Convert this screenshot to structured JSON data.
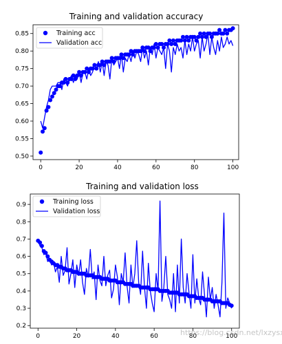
{
  "watermark": "https://blog.csdn.net/lxzysx",
  "colors": {
    "series": "#0000ff",
    "axes": "#000000",
    "background": "#ffffff"
  },
  "chart_data": [
    {
      "type": "scatter+line",
      "title": "Training and validation accuracy",
      "xlabel": "",
      "ylabel": "",
      "xlim": [
        -4,
        103
      ],
      "ylim": [
        0.49,
        0.875
      ],
      "xticks": [
        0,
        20,
        40,
        60,
        80,
        100
      ],
      "yticks": [
        0.5,
        0.55,
        0.6,
        0.65,
        0.7,
        0.75,
        0.8,
        0.85
      ],
      "ytick_labels": [
        "0.50",
        "0.55",
        "0.60",
        "0.65",
        "0.70",
        "0.75",
        "0.80",
        "0.85"
      ],
      "legend_position": "top-left",
      "series": [
        {
          "name": "Training acc",
          "style": "dots",
          "x": [
            0,
            1,
            2,
            3,
            4,
            5,
            6,
            7,
            8,
            9,
            10,
            11,
            12,
            13,
            14,
            15,
            16,
            17,
            18,
            19,
            20,
            21,
            22,
            23,
            24,
            25,
            26,
            27,
            28,
            29,
            30,
            31,
            32,
            33,
            34,
            35,
            36,
            37,
            38,
            39,
            40,
            41,
            42,
            43,
            44,
            45,
            46,
            47,
            48,
            49,
            50,
            51,
            52,
            53,
            54,
            55,
            56,
            57,
            58,
            59,
            60,
            61,
            62,
            63,
            64,
            65,
            66,
            67,
            68,
            69,
            70,
            71,
            72,
            73,
            74,
            75,
            76,
            77,
            78,
            79,
            80,
            81,
            82,
            83,
            84,
            85,
            86,
            87,
            88,
            89,
            90,
            91,
            92,
            93,
            94,
            95,
            96,
            97,
            98,
            99,
            100
          ],
          "values": [
            0.51,
            0.57,
            0.58,
            0.63,
            0.64,
            0.66,
            0.67,
            0.68,
            0.69,
            0.7,
            0.7,
            0.71,
            0.71,
            0.72,
            0.71,
            0.72,
            0.72,
            0.73,
            0.72,
            0.73,
            0.74,
            0.73,
            0.74,
            0.74,
            0.75,
            0.74,
            0.75,
            0.75,
            0.76,
            0.75,
            0.76,
            0.76,
            0.77,
            0.76,
            0.77,
            0.77,
            0.77,
            0.78,
            0.77,
            0.78,
            0.78,
            0.78,
            0.79,
            0.78,
            0.79,
            0.79,
            0.79,
            0.8,
            0.79,
            0.8,
            0.8,
            0.8,
            0.8,
            0.81,
            0.8,
            0.81,
            0.81,
            0.8,
            0.81,
            0.81,
            0.82,
            0.81,
            0.82,
            0.82,
            0.81,
            0.82,
            0.82,
            0.83,
            0.82,
            0.83,
            0.82,
            0.83,
            0.83,
            0.83,
            0.84,
            0.83,
            0.84,
            0.83,
            0.84,
            0.84,
            0.84,
            0.83,
            0.84,
            0.85,
            0.84,
            0.85,
            0.84,
            0.85,
            0.85,
            0.84,
            0.85,
            0.85,
            0.85,
            0.86,
            0.85,
            0.85,
            0.86,
            0.85,
            0.86,
            0.86,
            0.865
          ]
        },
        {
          "name": "Validation acc",
          "style": "line",
          "x": [
            0,
            1,
            2,
            3,
            4,
            5,
            6,
            7,
            8,
            9,
            10,
            11,
            12,
            13,
            14,
            15,
            16,
            17,
            18,
            19,
            20,
            21,
            22,
            23,
            24,
            25,
            26,
            27,
            28,
            29,
            30,
            31,
            32,
            33,
            34,
            35,
            36,
            37,
            38,
            39,
            40,
            41,
            42,
            43,
            44,
            45,
            46,
            47,
            48,
            49,
            50,
            51,
            52,
            53,
            54,
            55,
            56,
            57,
            58,
            59,
            60,
            61,
            62,
            63,
            64,
            65,
            66,
            67,
            68,
            69,
            70,
            71,
            72,
            73,
            74,
            75,
            76,
            77,
            78,
            79,
            80,
            81,
            82,
            83,
            84,
            85,
            86,
            87,
            88,
            89,
            90,
            91,
            92,
            93,
            94,
            95,
            96,
            97,
            98,
            99,
            100
          ],
          "values": [
            0.6,
            0.58,
            0.61,
            0.64,
            0.66,
            0.69,
            0.7,
            0.7,
            0.7,
            0.71,
            0.71,
            0.69,
            0.72,
            0.71,
            0.7,
            0.72,
            0.73,
            0.71,
            0.73,
            0.72,
            0.74,
            0.71,
            0.74,
            0.74,
            0.72,
            0.75,
            0.73,
            0.74,
            0.76,
            0.75,
            0.77,
            0.74,
            0.77,
            0.73,
            0.77,
            0.76,
            0.72,
            0.78,
            0.76,
            0.77,
            0.78,
            0.75,
            0.79,
            0.74,
            0.78,
            0.77,
            0.79,
            0.77,
            0.8,
            0.78,
            0.8,
            0.79,
            0.77,
            0.81,
            0.78,
            0.8,
            0.76,
            0.81,
            0.79,
            0.82,
            0.78,
            0.81,
            0.8,
            0.79,
            0.81,
            0.75,
            0.82,
            0.8,
            0.74,
            0.81,
            0.79,
            0.82,
            0.8,
            0.81,
            0.78,
            0.83,
            0.79,
            0.82,
            0.8,
            0.84,
            0.8,
            0.82,
            0.83,
            0.78,
            0.84,
            0.8,
            0.82,
            0.85,
            0.79,
            0.84,
            0.81,
            0.79,
            0.83,
            0.8,
            0.84,
            0.81,
            0.82,
            0.84,
            0.82,
            0.83,
            0.815
          ]
        }
      ]
    },
    {
      "type": "scatter+line",
      "title": "Training and validation loss",
      "xlabel": "",
      "ylabel": "",
      "xlim": [
        -4,
        104
      ],
      "ylim": [
        0.185,
        0.96
      ],
      "xticks": [
        0,
        20,
        40,
        60,
        80,
        100
      ],
      "yticks": [
        0.2,
        0.3,
        0.4,
        0.5,
        0.6,
        0.7,
        0.8,
        0.9
      ],
      "ytick_labels": [
        "0.2",
        "0.3",
        "0.4",
        "0.5",
        "0.6",
        "0.7",
        "0.8",
        "0.9"
      ],
      "legend_position": "top-left",
      "series": [
        {
          "name": "Training loss",
          "style": "dots",
          "x": [
            0,
            1,
            2,
            3,
            4,
            5,
            6,
            7,
            8,
            9,
            10,
            11,
            12,
            13,
            14,
            15,
            16,
            17,
            18,
            19,
            20,
            21,
            22,
            23,
            24,
            25,
            26,
            27,
            28,
            29,
            30,
            31,
            32,
            33,
            34,
            35,
            36,
            37,
            38,
            39,
            40,
            41,
            42,
            43,
            44,
            45,
            46,
            47,
            48,
            49,
            50,
            51,
            52,
            53,
            54,
            55,
            56,
            57,
            58,
            59,
            60,
            61,
            62,
            63,
            64,
            65,
            66,
            67,
            68,
            69,
            70,
            71,
            72,
            73,
            74,
            75,
            76,
            77,
            78,
            79,
            80,
            81,
            82,
            83,
            84,
            85,
            86,
            87,
            88,
            89,
            90,
            91,
            92,
            93,
            94,
            95,
            96,
            97,
            98,
            99,
            100
          ],
          "values": [
            0.69,
            0.68,
            0.66,
            0.63,
            0.62,
            0.6,
            0.58,
            0.57,
            0.56,
            0.55,
            0.55,
            0.54,
            0.54,
            0.53,
            0.53,
            0.52,
            0.52,
            0.52,
            0.51,
            0.51,
            0.51,
            0.5,
            0.5,
            0.5,
            0.5,
            0.49,
            0.49,
            0.49,
            0.49,
            0.48,
            0.48,
            0.48,
            0.48,
            0.47,
            0.47,
            0.47,
            0.47,
            0.46,
            0.46,
            0.46,
            0.46,
            0.45,
            0.45,
            0.45,
            0.45,
            0.44,
            0.44,
            0.44,
            0.44,
            0.43,
            0.43,
            0.43,
            0.43,
            0.42,
            0.42,
            0.42,
            0.42,
            0.42,
            0.41,
            0.41,
            0.41,
            0.41,
            0.41,
            0.4,
            0.4,
            0.4,
            0.4,
            0.4,
            0.39,
            0.39,
            0.39,
            0.39,
            0.39,
            0.38,
            0.38,
            0.38,
            0.38,
            0.38,
            0.37,
            0.37,
            0.37,
            0.37,
            0.36,
            0.36,
            0.36,
            0.36,
            0.35,
            0.35,
            0.35,
            0.35,
            0.34,
            0.34,
            0.34,
            0.34,
            0.34,
            0.33,
            0.33,
            0.33,
            0.33,
            0.32,
            0.315
          ]
        },
        {
          "name": "Validation loss",
          "style": "line",
          "x": [
            0,
            1,
            2,
            3,
            4,
            5,
            6,
            7,
            8,
            9,
            10,
            11,
            12,
            13,
            14,
            15,
            16,
            17,
            18,
            19,
            20,
            21,
            22,
            23,
            24,
            25,
            26,
            27,
            28,
            29,
            30,
            31,
            32,
            33,
            34,
            35,
            36,
            37,
            38,
            39,
            40,
            41,
            42,
            43,
            44,
            45,
            46,
            47,
            48,
            49,
            50,
            51,
            52,
            53,
            54,
            55,
            56,
            57,
            58,
            59,
            60,
            61,
            62,
            63,
            64,
            65,
            66,
            67,
            68,
            69,
            70,
            71,
            72,
            73,
            74,
            75,
            76,
            77,
            78,
            79,
            80,
            81,
            82,
            83,
            84,
            85,
            86,
            87,
            88,
            89,
            90,
            91,
            92,
            93,
            94,
            95,
            96,
            97,
            98,
            99,
            100
          ],
          "values": [
            0.7,
            0.66,
            0.65,
            0.61,
            0.62,
            0.57,
            0.58,
            0.55,
            0.57,
            0.51,
            0.54,
            0.45,
            0.6,
            0.49,
            0.52,
            0.65,
            0.44,
            0.5,
            0.58,
            0.42,
            0.55,
            0.49,
            0.58,
            0.45,
            0.38,
            0.53,
            0.48,
            0.64,
            0.47,
            0.51,
            0.35,
            0.55,
            0.46,
            0.43,
            0.6,
            0.43,
            0.49,
            0.52,
            0.36,
            0.41,
            0.55,
            0.48,
            0.32,
            0.5,
            0.45,
            0.62,
            0.43,
            0.33,
            0.55,
            0.42,
            0.5,
            0.69,
            0.45,
            0.38,
            0.63,
            0.42,
            0.3,
            0.56,
            0.4,
            0.33,
            0.28,
            0.5,
            0.4,
            0.92,
            0.34,
            0.42,
            0.6,
            0.38,
            0.35,
            0.3,
            0.5,
            0.28,
            0.55,
            0.33,
            0.7,
            0.42,
            0.33,
            0.5,
            0.39,
            0.3,
            0.61,
            0.33,
            0.47,
            0.36,
            0.32,
            0.51,
            0.38,
            0.25,
            0.48,
            0.35,
            0.42,
            0.3,
            0.38,
            0.32,
            0.25,
            0.45,
            0.85,
            0.3,
            0.36,
            0.33,
            0.3
          ]
        }
      ]
    }
  ]
}
